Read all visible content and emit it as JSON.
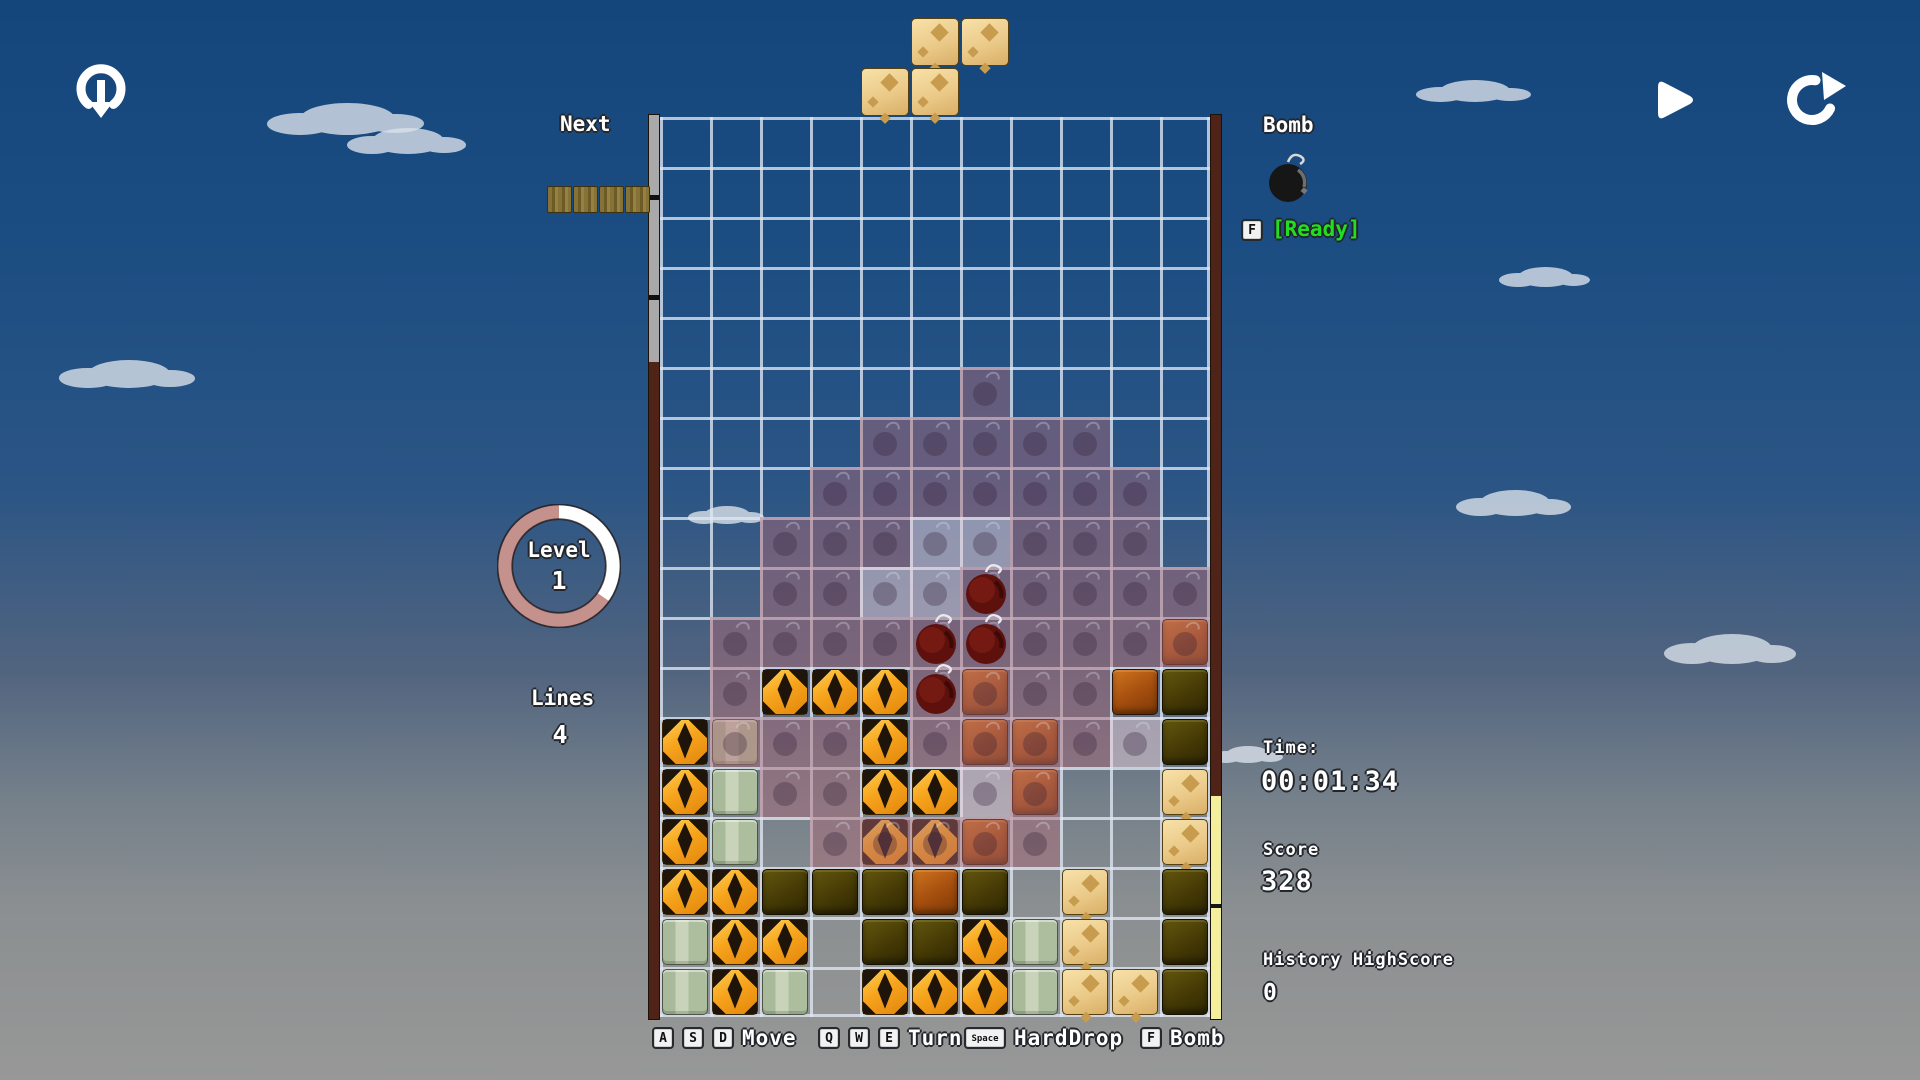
{
  "hud": {
    "next_label": "Next",
    "bomb_label": "Bomb",
    "bomb_key": "F",
    "bomb_status": "[Ready]",
    "level_label": "Level",
    "level_value": "1",
    "lines_label": "Lines",
    "lines_value": "4",
    "time_label": "Time:",
    "time_value": "00:01:34",
    "score_label": "Score",
    "score_value": "328",
    "highscore_label": "History HighScore",
    "highscore_value": "0"
  },
  "controls": [
    {
      "keys": [
        "A",
        "S",
        "D"
      ],
      "label": "Move"
    },
    {
      "keys": [
        "Q",
        "W",
        "E"
      ],
      "label": "Turn"
    },
    {
      "keys": [
        "Space"
      ],
      "label": "HardDrop"
    },
    {
      "keys": [
        "F"
      ],
      "label": "Bomb"
    }
  ],
  "icons": [
    "restart-drop-icon",
    "play-icon",
    "refresh-icon",
    "bomb-icon"
  ],
  "board": {
    "cols": 11,
    "rows": 18,
    "legend": {
      ".": "empty",
      "Y": "yellow-tulip-block",
      "S": "sage-block",
      "T": "tan-dice-block",
      "O": "burnt-orange-block",
      "D": "dark-olive-block",
      "B": "bomb"
    },
    "blocks": [
      "...........",
      "...........",
      "...........",
      "...........",
      "...........",
      "...........",
      "...........",
      "...........",
      "...........",
      "......B....",
      ".....BB...O",
      "..YYYBO..OD",
      "YS..Y.OO..D",
      "YS..YY.O..T",
      "YS..YYO...T",
      "YYDDDOD.T.D",
      "SYY.DDYST.D",
      "SYS.YYYSTTD"
    ],
    "overlay_legend": {
      ".": "none",
      "p": "purple-blast-preview",
      "l": "light-blast-preview"
    },
    "overlay": [
      "...........",
      "...........",
      "...........",
      "...........",
      "...........",
      "......p....",
      "....ppppp..",
      "...ppppppp.",
      "..pppllppp.",
      "..ppllppppp",
      ".pppppppppp",
      ".p...pppp..",
      ".ppp.ppppl.",
      "..pp..lp...",
      "...ppppp...",
      "...........",
      "...........",
      "..........."
    ],
    "falling_piece": {
      "type": "S",
      "block": "T",
      "cells": [
        [
          5,
          -2
        ],
        [
          6,
          -2
        ],
        [
          4,
          -1
        ],
        [
          5,
          -1
        ]
      ]
    },
    "next_piece": {
      "type": "I",
      "block_count": 4
    }
  },
  "colors": {
    "sky_top": "#14467c",
    "sky_bottom": "#979897",
    "overlay_purple": "rgba(175,104,118,0.46)",
    "ready_green": "#23dd23",
    "ring_rose": "#c5918c",
    "border_maroon": "#4f2317",
    "meter_yellow": "#f4ef9c",
    "gridline": "rgba(223,231,243,0.78)"
  }
}
